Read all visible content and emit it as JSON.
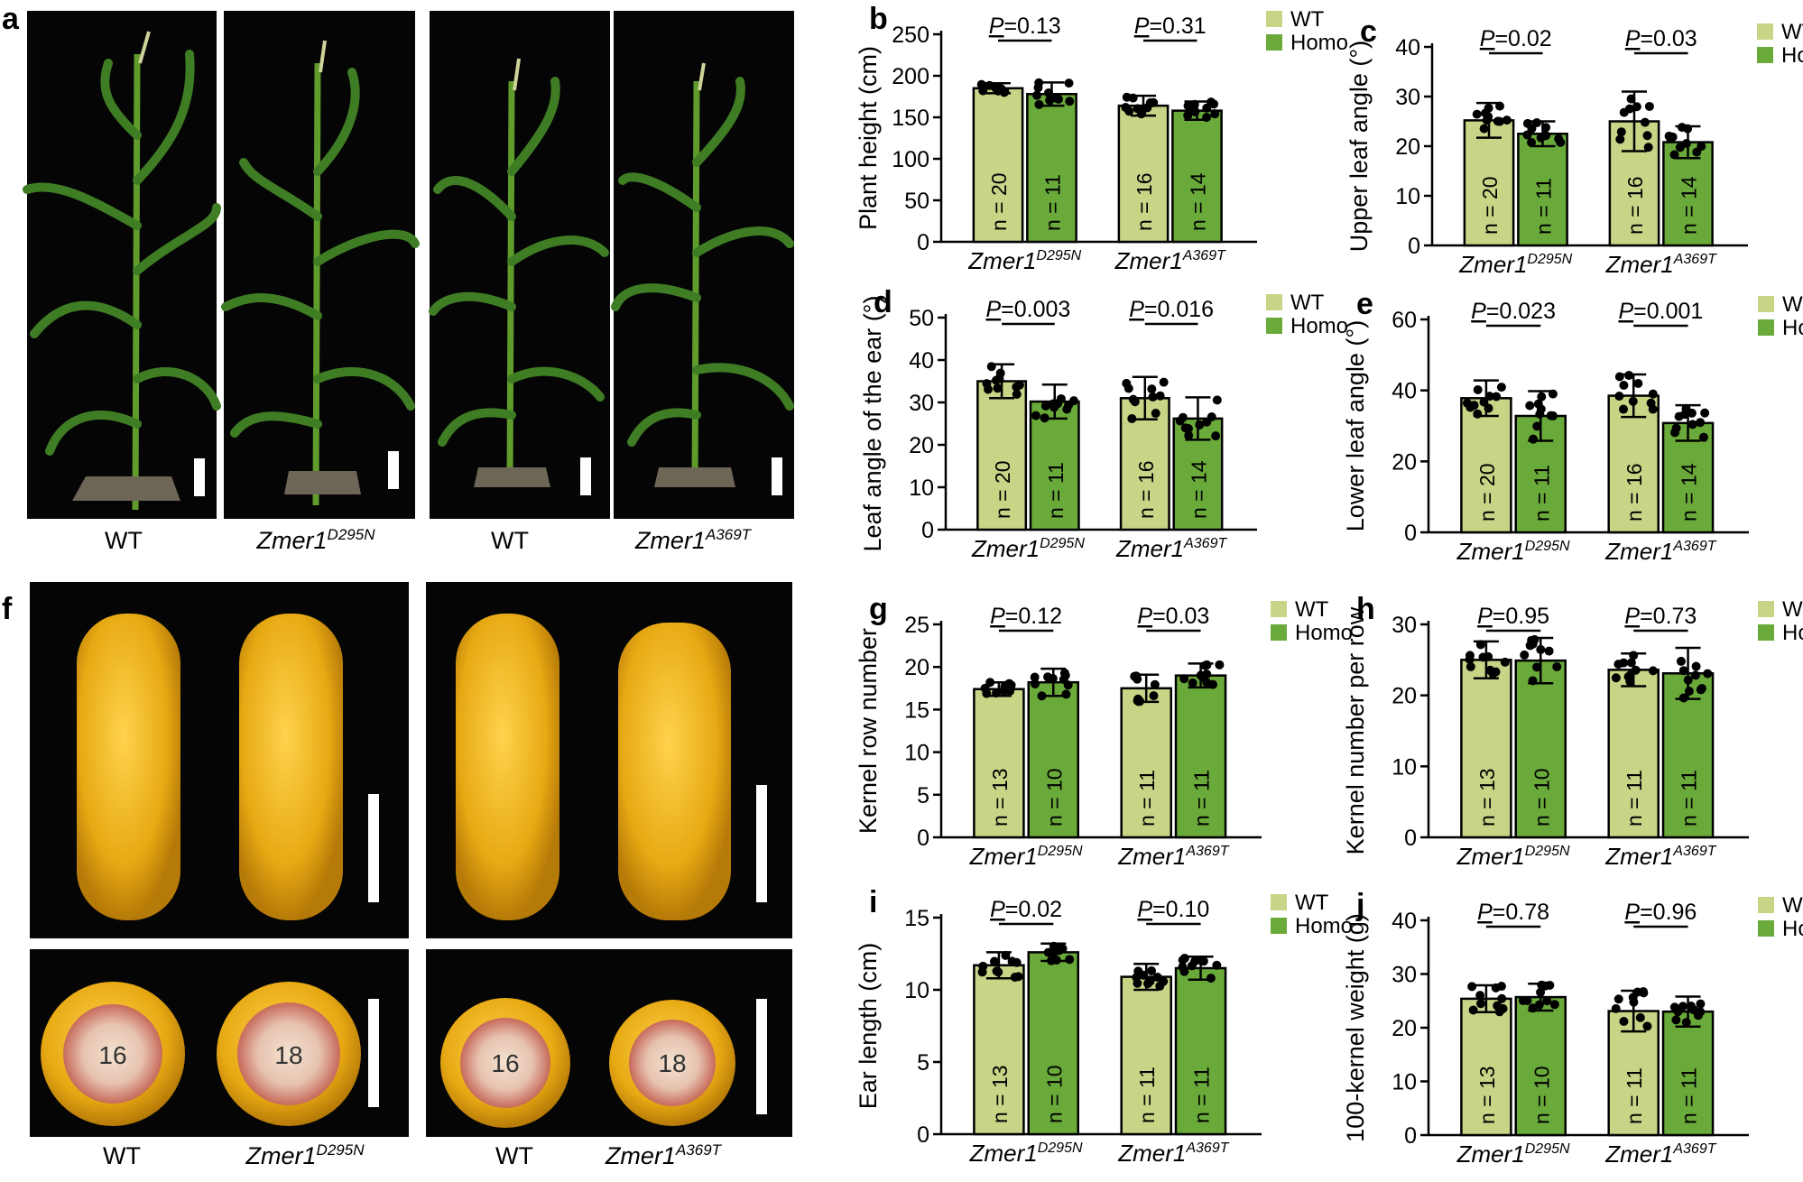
{
  "figure": {
    "panel_a": {
      "letter": "a",
      "captions": [
        "WT",
        "Zmer1",
        "WT",
        "Zmer1"
      ],
      "caption_sups": [
        "",
        "D295N",
        "",
        "A369T"
      ]
    },
    "panel_f": {
      "letter": "f",
      "captions": [
        "WT",
        "Zmer1",
        "WT",
        "Zmer1"
      ],
      "caption_sups": [
        "",
        "D295N",
        "",
        "A369T"
      ],
      "row_counts": [
        "16",
        "18",
        "16",
        "18"
      ]
    }
  },
  "colors": {
    "wt": "#c9d487",
    "homo": "#6aaa3a",
    "photo_bg": "#050505"
  },
  "chart_data": [
    {
      "id": "b",
      "letter": "b",
      "type": "bar",
      "ylabel": "Plant height (cm)",
      "ylim": [
        0,
        250
      ],
      "yticks": [
        0,
        50,
        100,
        150,
        200,
        250
      ],
      "categories": [
        {
          "main": "Zmer1",
          "sup": "D295N"
        },
        {
          "main": "Zmer1",
          "sup": "A369T"
        }
      ],
      "series": [
        {
          "name": "WT",
          "values": [
            185,
            164
          ],
          "sd": [
            6,
            12
          ],
          "n": [
            "n = 20",
            "n = 16"
          ]
        },
        {
          "name": "Homo",
          "values": [
            178,
            158
          ],
          "sd": [
            14,
            11
          ],
          "n": [
            "n = 11",
            "n = 14"
          ]
        }
      ],
      "p": [
        "P=0.13",
        "P=0.31"
      ],
      "legend_position": "top-right"
    },
    {
      "id": "c",
      "letter": "c",
      "type": "bar",
      "ylabel": "Upper leaf angle (°)",
      "ylim": [
        0,
        40
      ],
      "yticks": [
        0,
        10,
        20,
        30,
        40
      ],
      "categories": [
        {
          "main": "Zmer1",
          "sup": "D295N"
        },
        {
          "main": "Zmer1",
          "sup": "A369T"
        }
      ],
      "series": [
        {
          "name": "WT",
          "values": [
            25.2,
            25
          ],
          "sd": [
            3.5,
            6
          ],
          "n": [
            "n = 20",
            "n = 16"
          ]
        },
        {
          "name": "Homo",
          "values": [
            22.5,
            20.8
          ],
          "sd": [
            2.5,
            3.2
          ],
          "n": [
            "n = 11",
            "n = 14"
          ]
        }
      ],
      "p": [
        "P=0.02",
        "P=0.03"
      ],
      "legend_position": "top-right"
    },
    {
      "id": "d",
      "letter": "d",
      "type": "bar",
      "ylabel": "Leaf angle of the ear (°)",
      "ylim": [
        0,
        50
      ],
      "yticks": [
        0,
        10,
        20,
        30,
        40,
        50
      ],
      "categories": [
        {
          "main": "Zmer1",
          "sup": "D295N"
        },
        {
          "main": "Zmer1",
          "sup": "A369T"
        }
      ],
      "series": [
        {
          "name": "WT",
          "values": [
            35,
            31
          ],
          "sd": [
            4,
            5
          ],
          "n": [
            "n = 20",
            "n = 16"
          ]
        },
        {
          "name": "Homo",
          "values": [
            30.2,
            26.2
          ],
          "sd": [
            4,
            5
          ],
          "n": [
            "n = 11",
            "n = 14"
          ]
        }
      ],
      "p": [
        "P=0.003",
        "P=0.016"
      ],
      "legend_position": "top-right"
    },
    {
      "id": "e",
      "letter": "e",
      "type": "bar",
      "ylabel": "Lower leaf angle (°)",
      "ylim": [
        0,
        60
      ],
      "yticks": [
        0,
        20,
        40,
        60
      ],
      "categories": [
        {
          "main": "Zmer1",
          "sup": "D295N"
        },
        {
          "main": "Zmer1",
          "sup": "A369T"
        }
      ],
      "series": [
        {
          "name": "WT",
          "values": [
            37.8,
            38.5
          ],
          "sd": [
            5,
            6
          ],
          "n": [
            "n = 20",
            "n = 16"
          ]
        },
        {
          "name": "Homo",
          "values": [
            32.8,
            30.8
          ],
          "sd": [
            7,
            5
          ],
          "n": [
            "n = 11",
            "n = 14"
          ]
        }
      ],
      "p": [
        "P=0.023",
        "P=0.001"
      ],
      "legend_position": "top-right"
    },
    {
      "id": "g",
      "letter": "g",
      "type": "bar",
      "ylabel": "Kernel row number",
      "ylim": [
        0,
        25
      ],
      "yticks": [
        0,
        5,
        10,
        15,
        20,
        25
      ],
      "categories": [
        {
          "main": "Zmer1",
          "sup": "D295N"
        },
        {
          "main": "Zmer1",
          "sup": "A369T"
        }
      ],
      "series": [
        {
          "name": "WT",
          "values": [
            17.4,
            17.5
          ],
          "sd": [
            0.8,
            1.6
          ],
          "n": [
            "n = 13",
            "n = 11"
          ]
        },
        {
          "name": "Homo",
          "values": [
            18.2,
            19
          ],
          "sd": [
            1.6,
            1.4
          ],
          "n": [
            "n = 10",
            "n = 11"
          ]
        }
      ],
      "p": [
        "P=0.12",
        "P=0.03"
      ],
      "legend_position": "top-right"
    },
    {
      "id": "h",
      "letter": "h",
      "type": "bar",
      "ylabel": "Kernel number per row",
      "ylim": [
        0,
        30
      ],
      "yticks": [
        0,
        10,
        20,
        30
      ],
      "categories": [
        {
          "main": "Zmer1",
          "sup": "D295N"
        },
        {
          "main": "Zmer1",
          "sup": "A369T"
        }
      ],
      "series": [
        {
          "name": "WT",
          "values": [
            25,
            23.6
          ],
          "sd": [
            2.6,
            2.3
          ],
          "n": [
            "n = 13",
            "n = 11"
          ]
        },
        {
          "name": "Homo",
          "values": [
            24.9,
            23.1
          ],
          "sd": [
            3.2,
            3.6
          ],
          "n": [
            "n = 10",
            "n = 11"
          ]
        }
      ],
      "p": [
        "P=0.95",
        "P=0.73"
      ],
      "legend_position": "top-right"
    },
    {
      "id": "i",
      "letter": "i",
      "type": "bar",
      "ylabel": "Ear length (cm)",
      "ylim": [
        0,
        15
      ],
      "yticks": [
        0,
        5,
        10,
        15
      ],
      "categories": [
        {
          "main": "Zmer1",
          "sup": "D295N"
        },
        {
          "main": "Zmer1",
          "sup": "A369T"
        }
      ],
      "series": [
        {
          "name": "WT",
          "values": [
            11.7,
            10.9
          ],
          "sd": [
            0.9,
            0.9
          ],
          "n": [
            "n = 13",
            "n = 11"
          ]
        },
        {
          "name": "Homo",
          "values": [
            12.6,
            11.5
          ],
          "sd": [
            0.6,
            0.8
          ],
          "n": [
            "n = 10",
            "n = 11"
          ]
        }
      ],
      "p": [
        "P=0.02",
        "P=0.10"
      ],
      "legend_position": "top-right"
    },
    {
      "id": "j",
      "letter": "j",
      "type": "bar",
      "ylabel": "100-kernel weight (g)",
      "ylim": [
        0,
        40
      ],
      "yticks": [
        0,
        10,
        20,
        30,
        40
      ],
      "categories": [
        {
          "main": "Zmer1",
          "sup": "D295N"
        },
        {
          "main": "Zmer1",
          "sup": "A369T"
        }
      ],
      "series": [
        {
          "name": "WT",
          "values": [
            25.4,
            23.1
          ],
          "sd": [
            2.5,
            3.8
          ],
          "n": [
            "n = 13",
            "n = 11"
          ]
        },
        {
          "name": "Homo",
          "values": [
            25.7,
            23
          ],
          "sd": [
            2.5,
            2.8
          ],
          "n": [
            "n = 10",
            "n = 11"
          ]
        }
      ],
      "p": [
        "P=0.78",
        "P=0.96"
      ],
      "legend_position": "top-right"
    }
  ]
}
